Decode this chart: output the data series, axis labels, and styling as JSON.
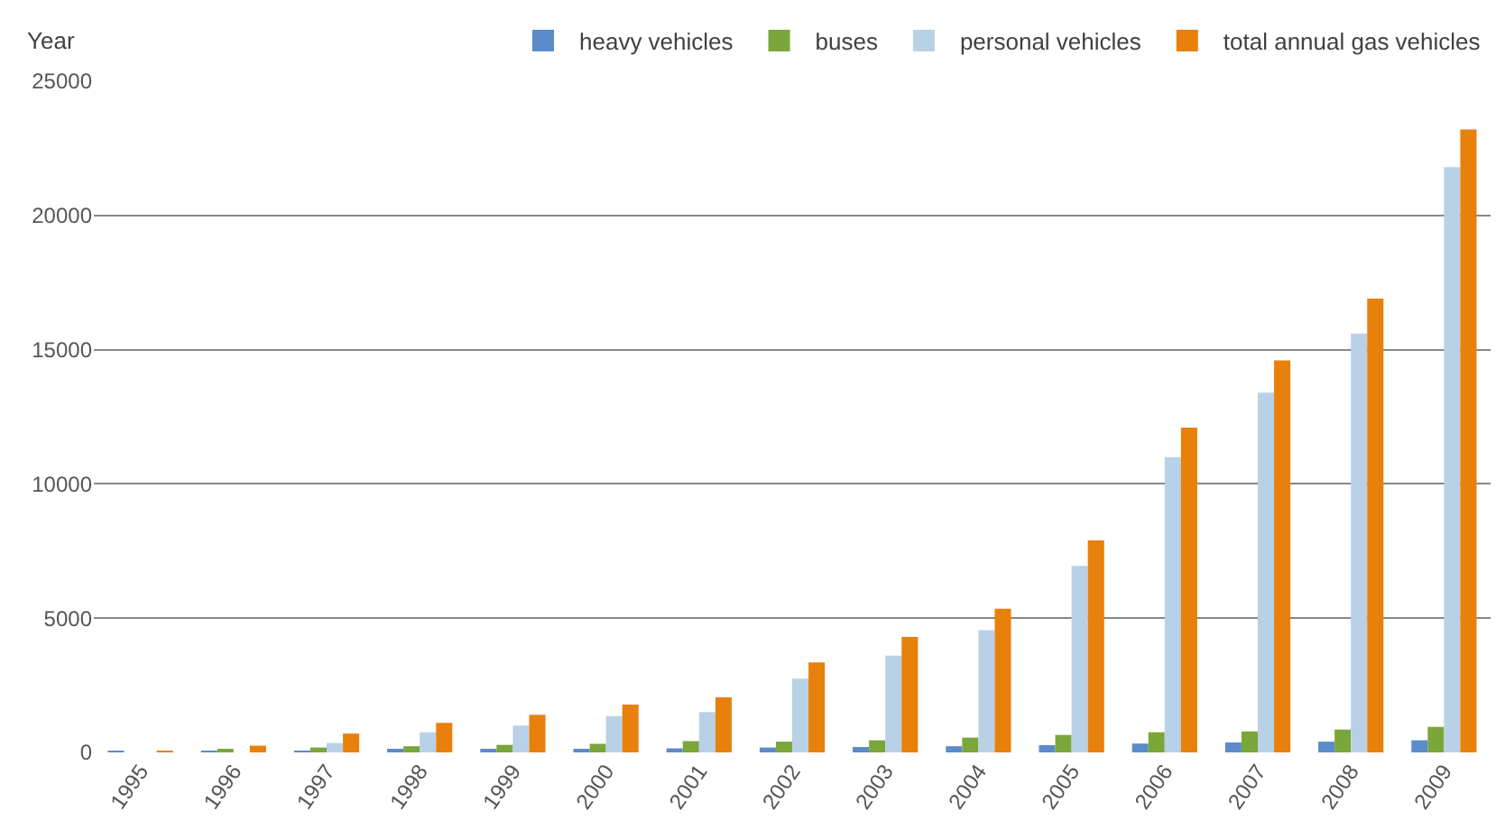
{
  "chart_data": {
    "type": "bar",
    "ylabel": "Year",
    "categories": [
      "1995",
      "1996",
      "1997",
      "1998",
      "1999",
      "2000",
      "2001",
      "2002",
      "2003",
      "2004",
      "2005",
      "2006",
      "2007",
      "2008",
      "2009"
    ],
    "series": [
      {
        "name": "heavy vehicles",
        "color": "#5b8bc9",
        "values": [
          20,
          60,
          50,
          80,
          100,
          120,
          150,
          180,
          200,
          230,
          270,
          330,
          370,
          400,
          450
        ]
      },
      {
        "name": "buses",
        "color": "#7aa63a",
        "values": [
          0,
          100,
          180,
          230,
          280,
          320,
          420,
          400,
          450,
          550,
          650,
          750,
          780,
          850,
          950
        ]
      },
      {
        "name": "personal vehicles",
        "color": "#b9d1e6",
        "values": [
          0,
          null,
          350,
          750,
          1000,
          1350,
          1500,
          2750,
          3600,
          4550,
          6950,
          11000,
          13400,
          15600,
          21800
        ]
      },
      {
        "name": "total annual gas vehicles",
        "color": "#e8800c",
        "values": [
          30,
          250,
          700,
          1100,
          1400,
          1780,
          2050,
          3350,
          4300,
          5350,
          7900,
          12100,
          14600,
          16900,
          23200
        ]
      }
    ],
    "ylim": [
      0,
      25000
    ],
    "yticks": [
      0,
      5000,
      10000,
      15000,
      20000,
      25000
    ],
    "grid": "y",
    "legend": "top right"
  }
}
